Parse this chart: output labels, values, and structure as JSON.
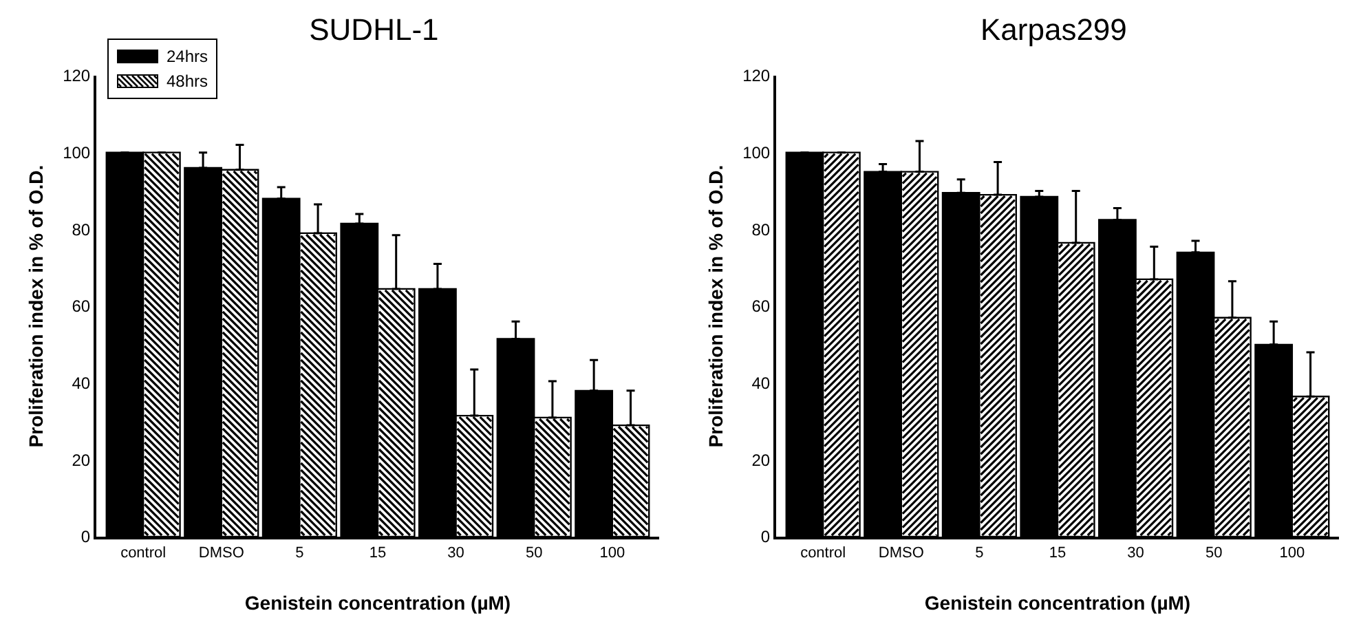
{
  "chart_data": [
    {
      "type": "bar",
      "title": "SUDHL-1",
      "xlabel": "Genistein concentration (µM)",
      "ylabel": "Proliferation index in % of O.D.",
      "categories": [
        "control",
        "DMSO",
        "5",
        "15",
        "30",
        "50",
        "100"
      ],
      "series": [
        {
          "name": "24hrs",
          "color": "#000000",
          "values": [
            100,
            96,
            88,
            81.5,
            64.5,
            51.5,
            38
          ],
          "errors": [
            null,
            [
              96,
              100
            ],
            [
              88,
              91
            ],
            [
              81.5,
              84
            ],
            [
              64.5,
              71
            ],
            [
              51.5,
              56
            ],
            [
              38,
              46
            ]
          ]
        },
        {
          "name": "48hrs",
          "color": "#ffffff",
          "values": [
            100,
            95.5,
            79,
            64.5,
            31.5,
            31,
            29
          ],
          "errors": [
            null,
            [
              95.5,
              102
            ],
            [
              79,
              86.5
            ],
            [
              64.5,
              78.5
            ],
            [
              31.5,
              43.5
            ],
            [
              31,
              40.5
            ],
            [
              29,
              38
            ]
          ]
        }
      ],
      "ylim": [
        0,
        120
      ],
      "yticks": [
        0,
        20,
        40,
        60,
        80,
        100,
        120
      ],
      "grid": false,
      "legend": "top left"
    },
    {
      "type": "bar",
      "title": "Karpas299",
      "xlabel": "Genistein concentration (µM)",
      "ylabel": "Proliferation index in % of O.D.",
      "categories": [
        "control",
        "DMSO",
        "5",
        "15",
        "30",
        "50",
        "100"
      ],
      "series": [
        {
          "color": "#000000",
          "values": [
            100,
            95,
            89.5,
            88.5,
            82.5,
            74,
            50
          ],
          "errors": [
            null,
            [
              95,
              97
            ],
            [
              89.5,
              93
            ],
            [
              88.5,
              90
            ],
            [
              82.5,
              85.5
            ],
            [
              74,
              77
            ],
            [
              50,
              56
            ]
          ]
        },
        {
          "color": "#ffffff",
          "values": [
            100,
            95,
            89,
            76.5,
            67,
            57,
            36.5
          ],
          "errors": [
            null,
            [
              95,
              103
            ],
            [
              89,
              97.5
            ],
            [
              76.5,
              90
            ],
            [
              67,
              75.5
            ],
            [
              57,
              66.5
            ],
            [
              36.5,
              48
            ]
          ]
        }
      ],
      "ylim": [
        0,
        120
      ],
      "yticks": [
        0,
        20,
        40,
        60,
        80,
        100,
        120
      ],
      "grid": false,
      "legend": false
    }
  ]
}
